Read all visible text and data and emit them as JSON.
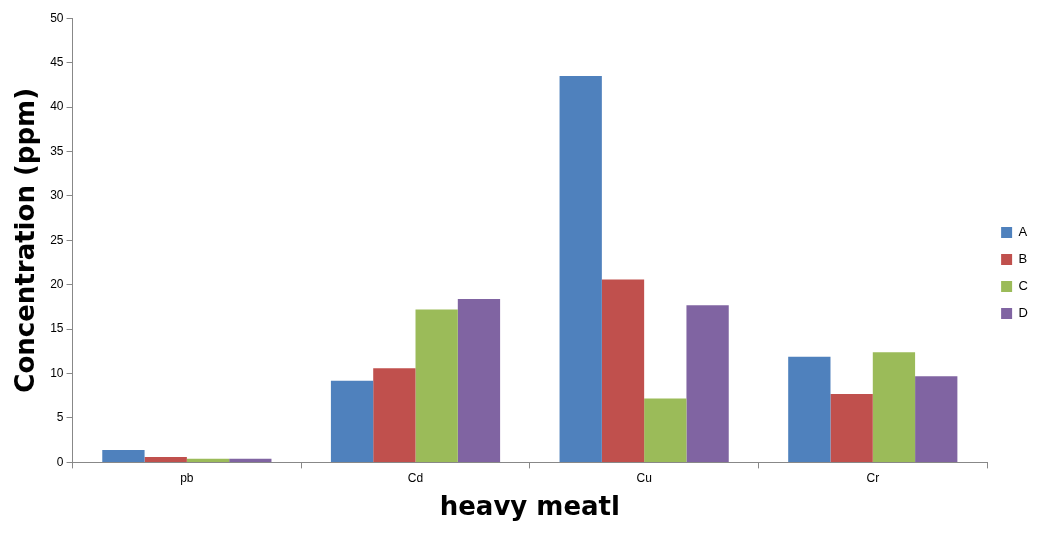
{
  "chart_data": {
    "type": "bar",
    "xlabel": "heavy meatl",
    "ylabel": "Concentration (ppm)",
    "categories": [
      "pb",
      "Cd",
      "Cu",
      "Cr"
    ],
    "series": [
      {
        "name": "A",
        "color": "#4f81bd",
        "values": [
          1.4,
          9.2,
          43.5,
          11.9
        ]
      },
      {
        "name": "B",
        "color": "#c0504d",
        "values": [
          0.6,
          10.6,
          20.6,
          7.7
        ]
      },
      {
        "name": "C",
        "color": "#9bbb59",
        "values": [
          0.4,
          17.2,
          7.2,
          12.4
        ]
      },
      {
        "name": "D",
        "color": "#8064a2",
        "values": [
          0.4,
          18.4,
          17.7,
          9.7
        ]
      }
    ],
    "ylim": [
      0,
      50
    ],
    "yticks": [
      0,
      5,
      10,
      15,
      20,
      25,
      30,
      35,
      40,
      45,
      50
    ],
    "grid": false,
    "legend": "right"
  }
}
